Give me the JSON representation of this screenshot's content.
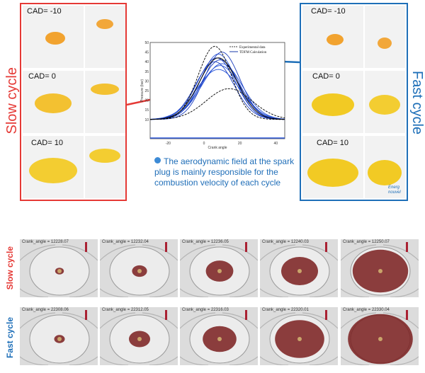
{
  "top": {
    "slow_label": "Slow cycle",
    "fast_label": "Fast cycle",
    "slow_cads": [
      "CAD= -10",
      "CAD= 0",
      "CAD= 10"
    ],
    "fast_cads": [
      "CAD= -10",
      "CAD= 0",
      "CAD= 10"
    ],
    "note": "The aerodynamic field at the spark plug is mainly responsible for the combustion velocity of each cycle",
    "logo_text": [
      "Energ",
      "nouvel"
    ]
  },
  "chart_data": {
    "type": "line",
    "xlabel": "Crank angle",
    "ylabel": "Pressure (bar)",
    "xlim": [
      -30,
      45
    ],
    "ylim": [
      0,
      50
    ],
    "xticks": [
      -20,
      0,
      20,
      40
    ],
    "yticks": [
      10,
      15,
      20,
      25,
      30,
      35,
      40,
      45,
      50
    ],
    "legend": [
      "Experimental data",
      "TDFM Calculation"
    ],
    "legend_position": "top-right"
  },
  "bottom": {
    "rows": [
      {
        "label": "Slow cycle",
        "color": "#e53935",
        "titles": [
          "Crank_angle = 12228.07",
          "Crank_angle = 12232.04",
          "Crank_angle = 12236.05",
          "Crank_angle = 12240.03",
          "Crank_angle = 12250.07"
        ],
        "levels": [
          0.05,
          0.15,
          0.35,
          0.5,
          0.8
        ]
      },
      {
        "label": "Fast cycle",
        "color": "#1e6fb8",
        "titles": [
          "Crank_angle = 22308.06",
          "Crank_angle = 22312.05",
          "Crank_angle = 22316.03",
          "Crank_angle = 22320.01",
          "Crank_angle = 22330.04"
        ],
        "levels": [
          0.08,
          0.25,
          0.45,
          0.7,
          0.95
        ]
      }
    ]
  },
  "colors": {
    "slow": "#e53935",
    "fast": "#1e6fb8",
    "flame": "#7a1f1f",
    "flame_yellow": "#f2c300"
  }
}
